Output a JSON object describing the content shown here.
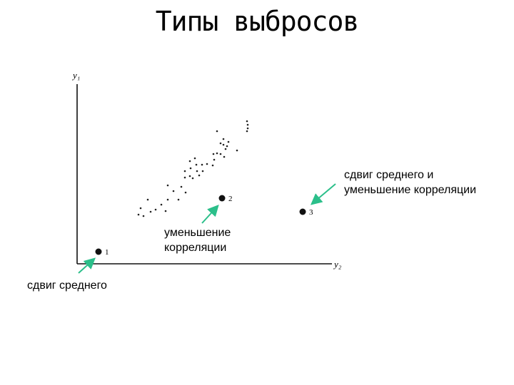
{
  "slide": {
    "title": "Типы выбросов"
  },
  "axes": {
    "y_label": "y₁",
    "x_label": "y₂"
  },
  "outliers": [
    {
      "id": "1",
      "label": "1"
    },
    {
      "id": "2",
      "label": "2"
    },
    {
      "id": "3",
      "label": "3"
    }
  ],
  "annotations": {
    "mean_shift_and_corr": "сдвиг среднего и\nуменьшение корреляции",
    "corr_reduction": "уменьшение\nкорреляции",
    "mean_shift": "сдвиг среднего"
  },
  "colors": {
    "arrow": "#2bbf8a",
    "ink": "#111111"
  }
}
